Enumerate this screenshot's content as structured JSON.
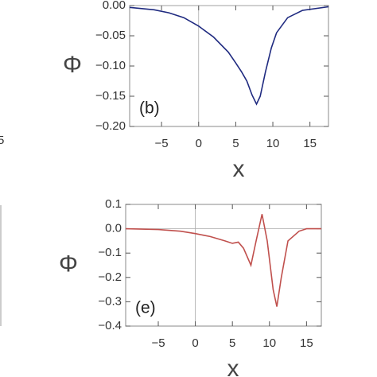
{
  "fragment_label": "5",
  "chart_data": [
    {
      "type": "line",
      "panel_label": "(b)",
      "xlabel": "x",
      "ylabel": "Φ",
      "xlim": [
        -9.3,
        17.5
      ],
      "ylim": [
        -0.2,
        0.0
      ],
      "xticks": [
        {
          "value": -5,
          "label": "−5"
        },
        0,
        5,
        10,
        15
      ],
      "yticks": [
        {
          "value": 0,
          "label": "0.00"
        },
        {
          "value": -0.05,
          "label": "−0.05"
        },
        {
          "value": -0.1,
          "label": "−0.10"
        },
        {
          "value": -0.15,
          "label": "−0.15"
        },
        {
          "value": -0.2,
          "label": "−0.20"
        }
      ],
      "series": [
        {
          "color": "#1f2a80",
          "x": [
            -9.3,
            -6,
            -4,
            -2,
            0,
            2,
            4,
            5,
            5.8,
            6.5,
            7.2,
            7.8,
            8.3,
            9,
            9.8,
            10.5,
            12,
            14,
            17.5
          ],
          "values": [
            -0.003,
            -0.007,
            -0.012,
            -0.02,
            -0.034,
            -0.052,
            -0.077,
            -0.095,
            -0.11,
            -0.125,
            -0.148,
            -0.163,
            -0.15,
            -0.11,
            -0.07,
            -0.045,
            -0.02,
            -0.008,
            -0.002
          ]
        }
      ]
    },
    {
      "type": "line",
      "panel_label": "(e)",
      "xlabel": "x",
      "ylabel": "Φ",
      "xlim": [
        -9.4,
        17
      ],
      "ylim": [
        -0.4,
        0.1
      ],
      "xticks": [
        {
          "value": -5,
          "label": "−5"
        },
        0,
        5,
        10,
        15
      ],
      "yticks": [
        0.1,
        {
          "value": 0,
          "label": "0.0"
        },
        {
          "value": -0.1,
          "label": "−0.1"
        },
        {
          "value": -0.2,
          "label": "−0.2"
        },
        {
          "value": -0.3,
          "label": "−0.3"
        },
        {
          "value": -0.4,
          "label": "−0.4"
        }
      ],
      "series": [
        {
          "color": "#c0504d",
          "x": [
            -9.4,
            -5,
            -2,
            0,
            2,
            4,
            5,
            5.8,
            6.5,
            7.5,
            8.2,
            9,
            9.7,
            10.5,
            11,
            11.6,
            12.5,
            14,
            15,
            17
          ],
          "values": [
            0,
            -0.003,
            -0.01,
            -0.02,
            -0.032,
            -0.05,
            -0.06,
            -0.055,
            -0.08,
            -0.15,
            -0.05,
            0.06,
            -0.05,
            -0.25,
            -0.32,
            -0.2,
            -0.05,
            -0.01,
            0,
            0
          ]
        }
      ]
    }
  ]
}
